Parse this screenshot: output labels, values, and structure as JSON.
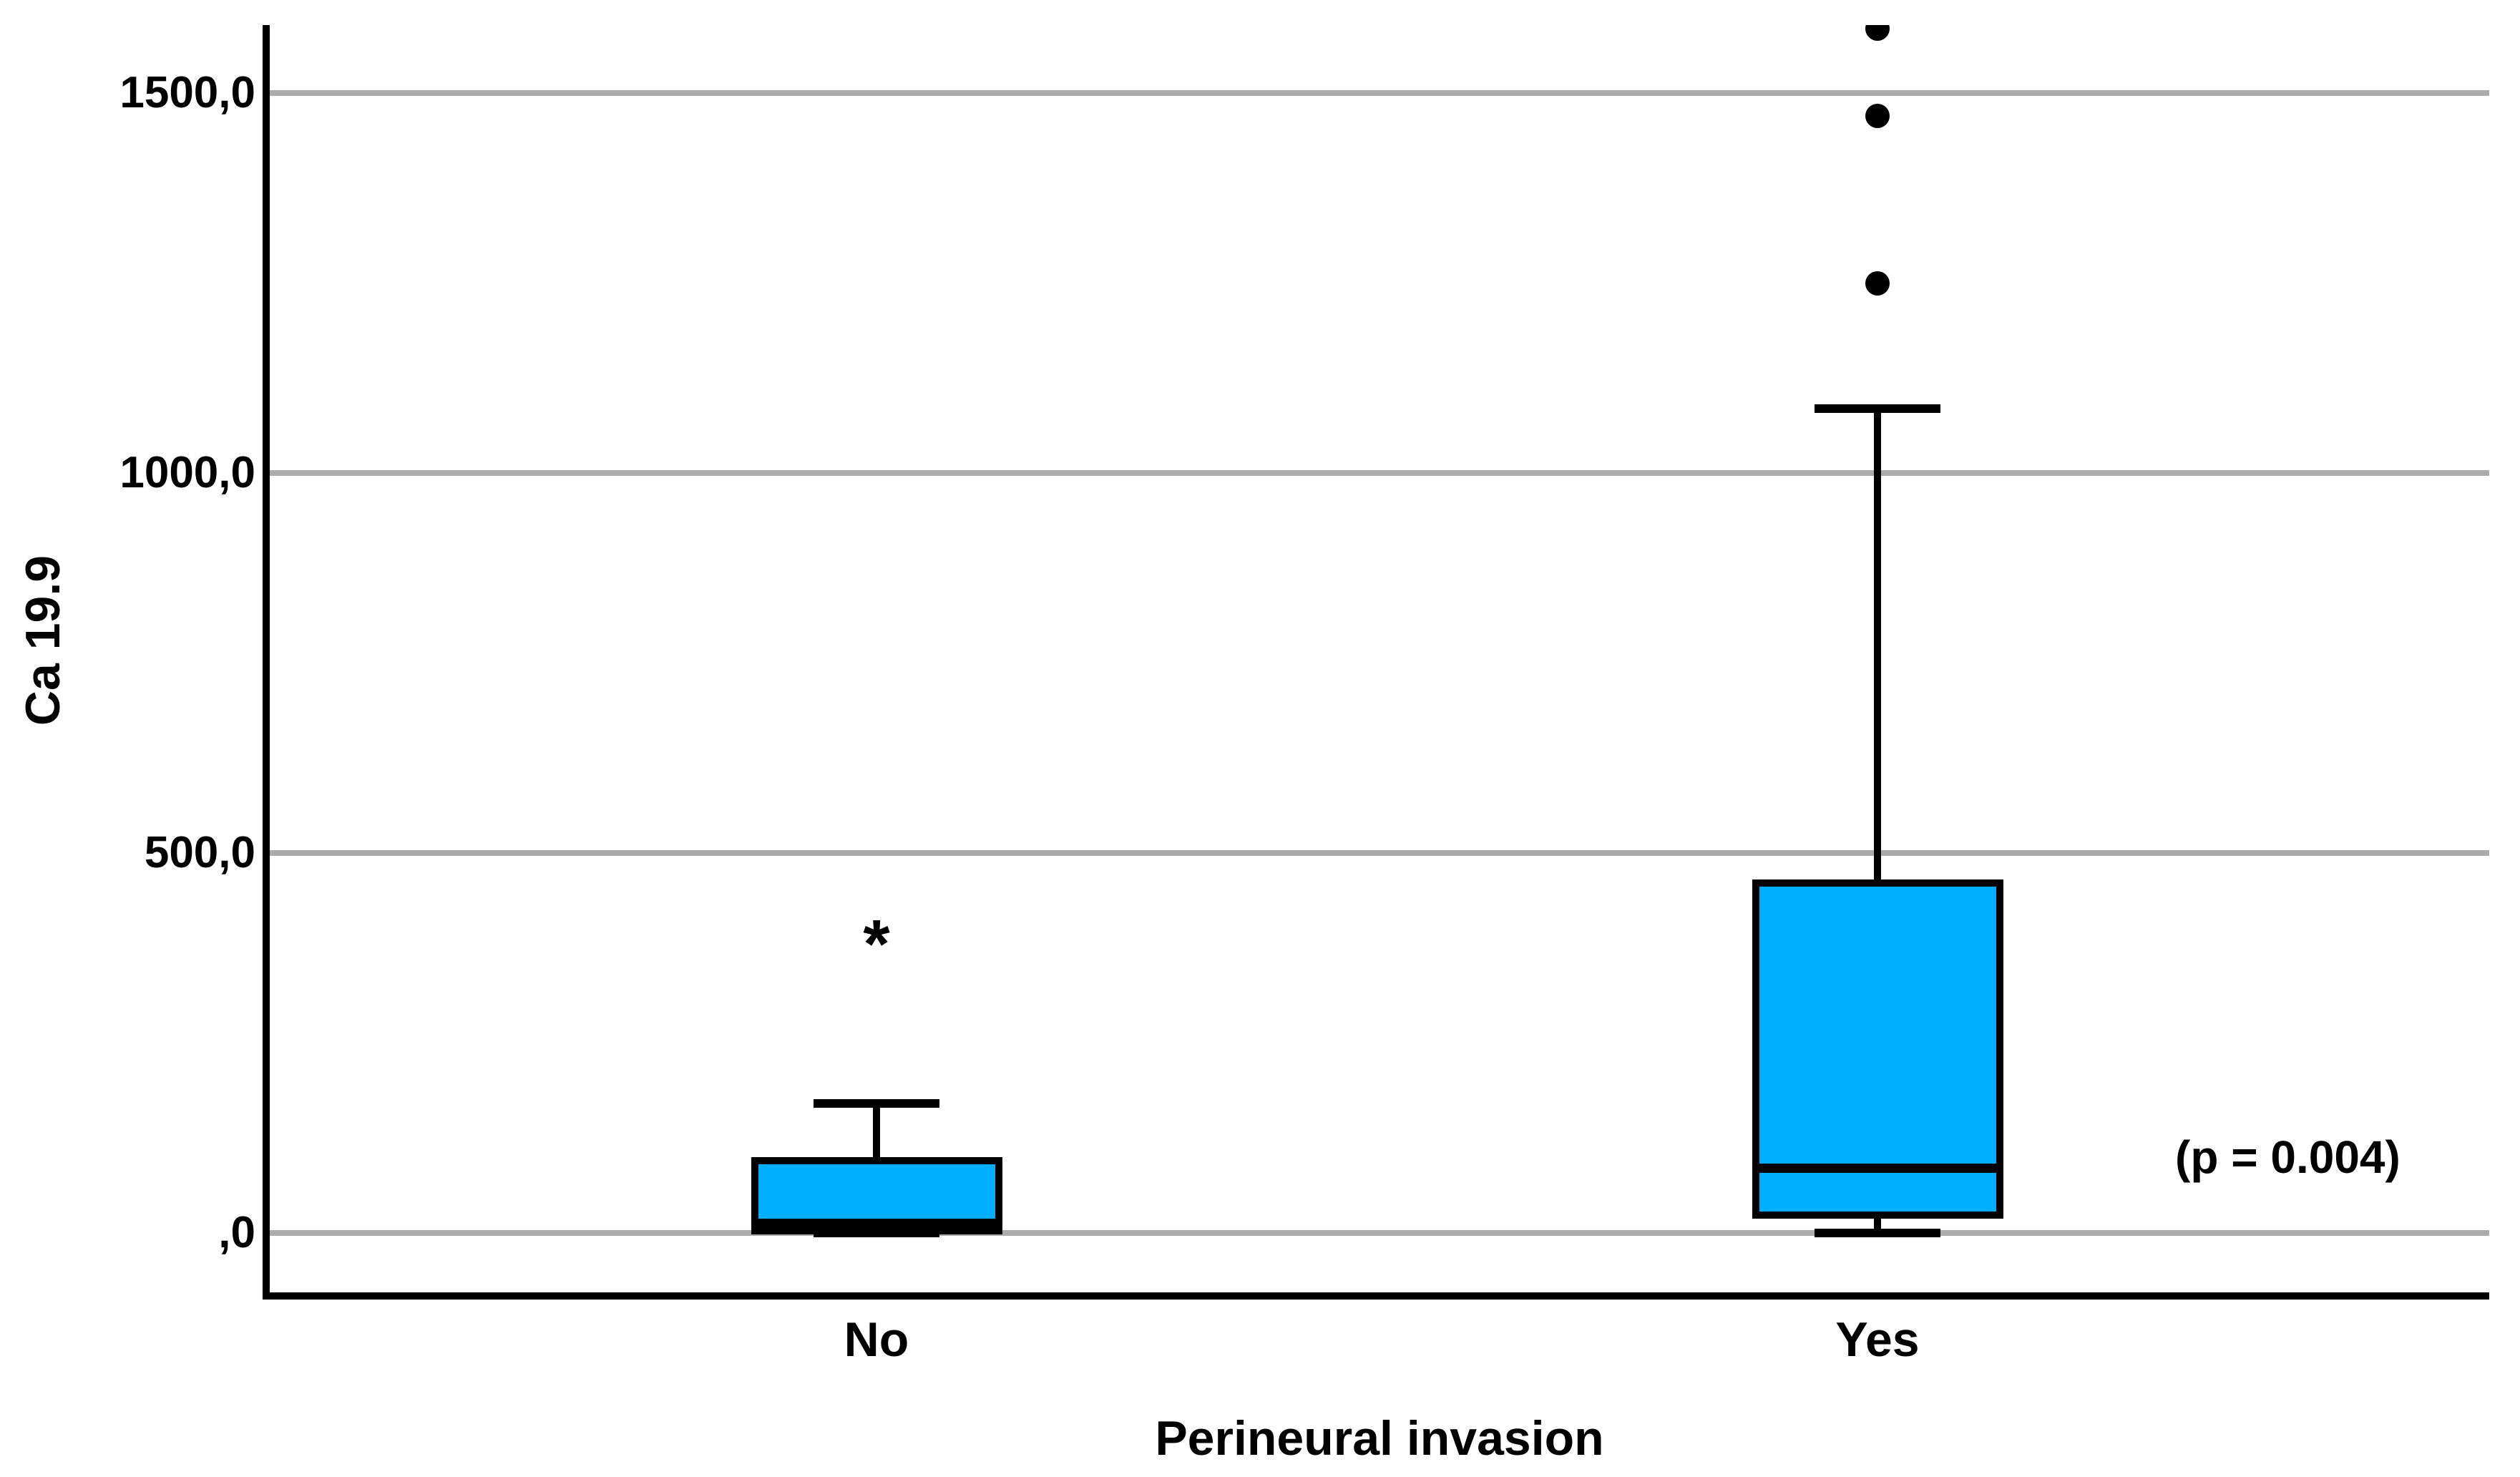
{
  "chart_data": {
    "type": "boxplot",
    "title": "",
    "ylabel": "Ca 19.9",
    "xlabel": "Perineural invasion",
    "annotation": {
      "text": "(p = 0.004)"
    },
    "y_axis": {
      "ticks": [
        {
          "label": ",0",
          "value": 0
        },
        {
          "label": "500,0",
          "value": 500
        },
        {
          "label": "1000,0",
          "value": 1000
        },
        {
          "label": "1500,0",
          "value": 1500
        }
      ],
      "ylim": [
        -85,
        1590
      ],
      "gridlines": true
    },
    "categories": [
      "No",
      "Yes"
    ],
    "series": [
      {
        "category": "No",
        "whisker_low": 0,
        "q1": 3,
        "median": 13,
        "q3": 95,
        "whisker_high": 170,
        "outliers": [],
        "extreme_outliers": [
          395
        ]
      },
      {
        "category": "Yes",
        "whisker_low": 0,
        "q1": 24,
        "median": 86,
        "q3": 460,
        "whisker_high": 1085,
        "outliers": [
          1250,
          1470,
          1585
        ],
        "extreme_outliers": []
      }
    ],
    "markers": {
      "outlier": "circle",
      "extreme_outlier": "*"
    },
    "colors": {
      "box_fill": "#00AEFF",
      "box_border": "#000000",
      "gridline": "#ABABAB",
      "axis": "#000000",
      "background": "#FFFFFF"
    },
    "legend": "none"
  }
}
